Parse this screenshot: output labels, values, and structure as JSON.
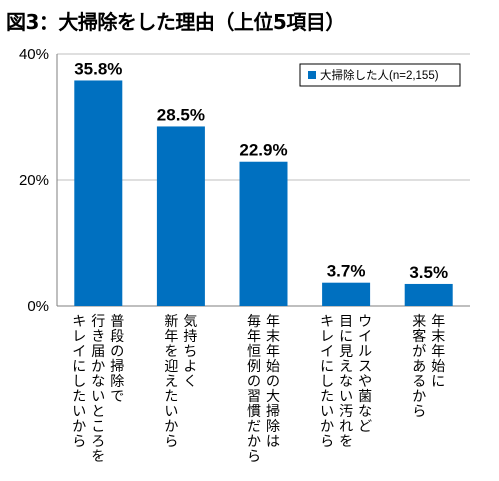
{
  "title": "図3：大掃除をした理由（上位5項目）",
  "chart_data": {
    "type": "bar",
    "categories": [
      [
        "普段の掃除で",
        "行き届かないところを",
        "キレイにしたいから"
      ],
      [
        "気持ちよく",
        "新年を迎えたいから"
      ],
      [
        "年末年始の大掃除は",
        "毎年恒例の習慣だから"
      ],
      [
        "ウイルスや菌など",
        "目に見えない汚れを",
        "キレイにしたいから"
      ],
      [
        "年末年始に",
        "来客があるから"
      ]
    ],
    "series": [
      {
        "name": "大掃除した人(n=2,155)",
        "values": [
          35.8,
          28.5,
          22.9,
          3.7,
          3.5
        ]
      }
    ],
    "value_labels": [
      "35.8%",
      "28.5%",
      "22.9%",
      "3.7%",
      "3.5%"
    ],
    "y_ticks": [
      "0%",
      "20%",
      "40%"
    ],
    "y_tick_values": [
      0,
      20,
      40
    ],
    "ylim": [
      0,
      40
    ],
    "bar_color": "#0070C0",
    "grid": true,
    "legend_position": "top-right"
  }
}
